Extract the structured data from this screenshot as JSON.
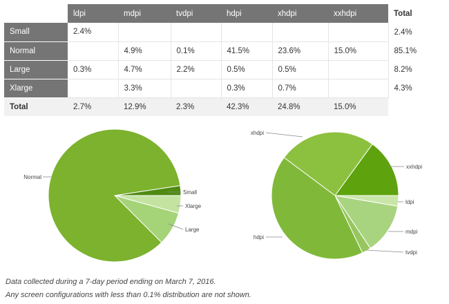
{
  "table": {
    "columns": [
      "ldpi",
      "mdpi",
      "tvdpi",
      "hdpi",
      "xhdpi",
      "xxhdpi"
    ],
    "total_label": "Total",
    "rows": [
      {
        "label": "Small",
        "values": [
          "2.4%",
          "",
          "",
          "",
          "",
          ""
        ],
        "total": "2.4%"
      },
      {
        "label": "Normal",
        "values": [
          "",
          "4.9%",
          "0.1%",
          "41.5%",
          "23.6%",
          "15.0%"
        ],
        "total": "85.1%"
      },
      {
        "label": "Large",
        "values": [
          "0.3%",
          "4.7%",
          "2.2%",
          "0.5%",
          "0.5%",
          ""
        ],
        "total": "8.2%"
      },
      {
        "label": "Xlarge",
        "values": [
          "",
          "3.3%",
          "",
          "0.3%",
          "0.7%",
          ""
        ],
        "total": "4.3%"
      }
    ],
    "totals_row": {
      "label": "Total",
      "values": [
        "2.7%",
        "12.9%",
        "2.3%",
        "42.3%",
        "24.8%",
        "15.0%"
      ]
    }
  },
  "chart_data": [
    {
      "type": "pie",
      "slices": [
        {
          "label": "Small",
          "value": 2.4,
          "color": "#4f8a10"
        },
        {
          "label": "Xlarge",
          "value": 4.3,
          "color": "#c4e3a1"
        },
        {
          "label": "Large",
          "value": 8.2,
          "color": "#a5d378"
        },
        {
          "label": "Normal",
          "value": 85.1,
          "color": "#7cb22e"
        }
      ]
    },
    {
      "type": "pie",
      "slices": [
        {
          "label": "xxhdpi",
          "value": 15.0,
          "color": "#5ea30e"
        },
        {
          "label": "ldpi",
          "value": 2.7,
          "color": "#c9e6a8"
        },
        {
          "label": "mdpi",
          "value": 12.9,
          "color": "#a9d47f"
        },
        {
          "label": "tvdpi",
          "value": 2.3,
          "color": "#97c65f"
        },
        {
          "label": "hdpi",
          "value": 42.3,
          "color": "#80b93a"
        },
        {
          "label": "xhdpi",
          "value": 24.8,
          "color": "#8cc03f"
        }
      ]
    }
  ],
  "notes": {
    "line1": "Data collected during a 7-day period ending on March 7, 2016.",
    "line2": "Any screen configurations with less than 0.1% distribution are not shown."
  }
}
